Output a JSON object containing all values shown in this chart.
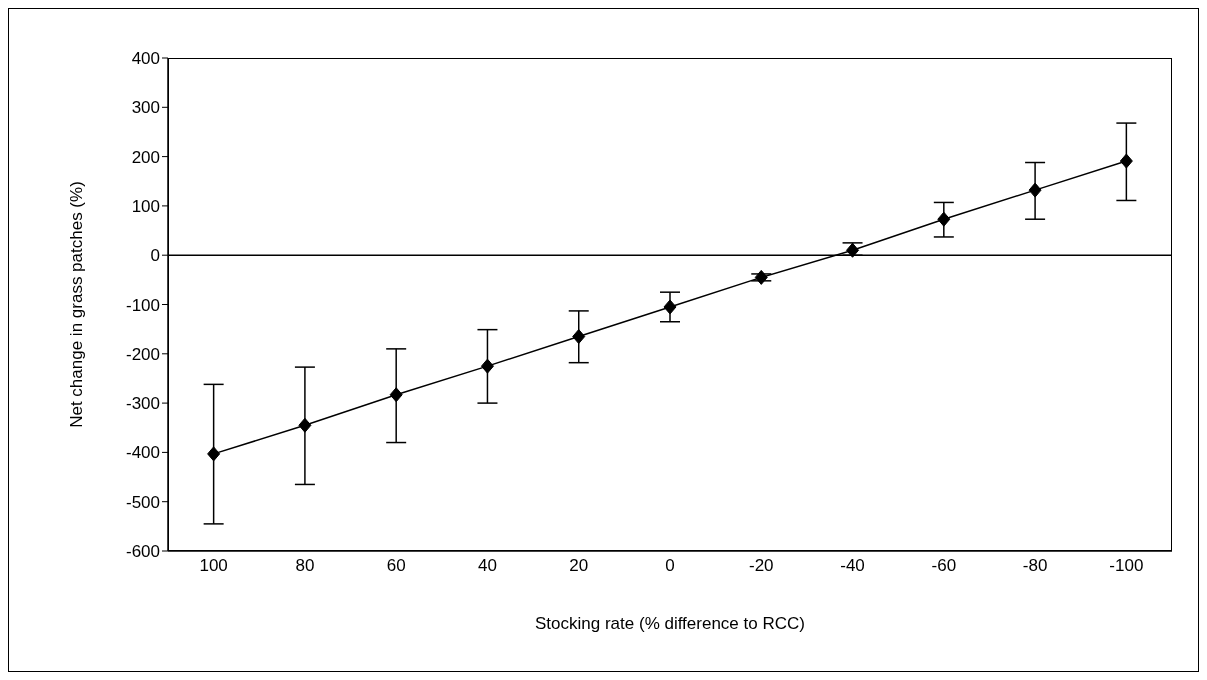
{
  "chart_data": {
    "type": "line",
    "xlabel": "Stocking rate (% difference to RCC)",
    "ylabel": "Net change in grass patches (%)",
    "categories": [
      "100",
      "80",
      "60",
      "40",
      "20",
      "0",
      "-20",
      "-40",
      "-60",
      "-80",
      "-100"
    ],
    "series": [
      {
        "color": "#000000",
        "values": [
          -403,
          -345,
          -283,
          -225,
          -165,
          -105,
          -45,
          10,
          73,
          132,
          191
        ],
        "errors": [
          [
            -545,
            -262
          ],
          [
            -465,
            -227
          ],
          [
            -380,
            -190
          ],
          [
            -300,
            -151
          ],
          [
            -218,
            -113
          ],
          [
            -135,
            -75
          ],
          [
            -52,
            -38
          ],
          [
            0,
            25
          ],
          [
            37,
            107
          ],
          [
            73,
            188
          ],
          [
            111,
            268
          ]
        ]
      }
    ],
    "ylim": [
      -600,
      400
    ],
    "yticks": [
      -600,
      -500,
      -400,
      -300,
      -200,
      -100,
      0,
      100,
      200,
      300,
      400
    ],
    "ref_lines": [
      {
        "axis": "y",
        "value": 0,
        "color": "#000000"
      }
    ],
    "marker": "diamond",
    "line_style": "solid"
  }
}
